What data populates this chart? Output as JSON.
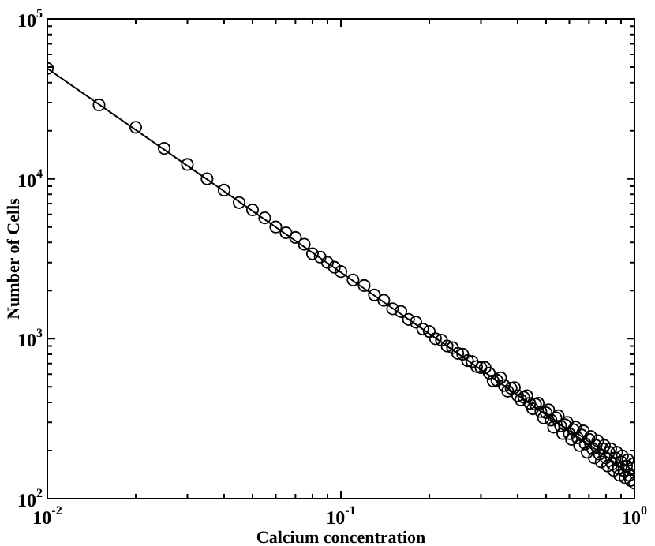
{
  "chart_data": {
    "type": "scatter",
    "xlabel": "Calcium concentration",
    "ylabel": "Number of Cells",
    "log": "xy",
    "xlim": [
      0.01,
      1
    ],
    "ylim": [
      100,
      100000
    ],
    "xticks": [
      {
        "value": 0.01,
        "label": "10$^{-2}$"
      },
      {
        "value": 0.02,
        "label": null
      },
      {
        "value": 0.03,
        "label": null
      },
      {
        "value": 0.04,
        "label": null
      },
      {
        "value": 0.05,
        "label": null
      },
      {
        "value": 0.06,
        "label": null
      },
      {
        "value": 0.07,
        "label": null
      },
      {
        "value": 0.08,
        "label": null
      },
      {
        "value": 0.09,
        "label": null
      },
      {
        "value": 0.1,
        "label": "10$^{-1}$"
      },
      {
        "value": 0.2,
        "label": null
      },
      {
        "value": 0.3,
        "label": null
      },
      {
        "value": 0.4,
        "label": null
      },
      {
        "value": 0.5,
        "label": null
      },
      {
        "value": 0.6,
        "label": null
      },
      {
        "value": 0.7,
        "label": null
      },
      {
        "value": 0.8,
        "label": null
      },
      {
        "value": 0.9,
        "label": null
      },
      {
        "value": 1,
        "label": "10$^{0}$"
      }
    ],
    "yticks": [
      {
        "value": 100,
        "label": "10$^{2}$"
      },
      {
        "value": 200,
        "label": null
      },
      {
        "value": 300,
        "label": null
      },
      {
        "value": 400,
        "label": null
      },
      {
        "value": 500,
        "label": null
      },
      {
        "value": 600,
        "label": null
      },
      {
        "value": 700,
        "label": null
      },
      {
        "value": 800,
        "label": null
      },
      {
        "value": 900,
        "label": null
      },
      {
        "value": 1000,
        "label": "10$^{3}$"
      },
      {
        "value": 2000,
        "label": null
      },
      {
        "value": 3000,
        "label": null
      },
      {
        "value": 4000,
        "label": null
      },
      {
        "value": 5000,
        "label": null
      },
      {
        "value": 6000,
        "label": null
      },
      {
        "value": 7000,
        "label": null
      },
      {
        "value": 8000,
        "label": null
      },
      {
        "value": 9000,
        "label": null
      },
      {
        "value": 10000,
        "label": "10$^{4}$"
      },
      {
        "value": 20000,
        "label": null
      },
      {
        "value": 30000,
        "label": null
      },
      {
        "value": 40000,
        "label": null
      },
      {
        "value": 50000,
        "label": null
      },
      {
        "value": 60000,
        "label": null
      },
      {
        "value": 70000,
        "label": null
      },
      {
        "value": 80000,
        "label": null
      },
      {
        "value": 90000,
        "label": null
      },
      {
        "value": 100000,
        "label": "10$^{5}$"
      }
    ],
    "series": [
      {
        "color": "#000000",
        "marker": "circle",
        "x": [
          0.01,
          0.015,
          0.02,
          0.025,
          0.03,
          0.035,
          0.04,
          0.045,
          0.05,
          0.055,
          0.06,
          0.065,
          0.07,
          0.075,
          0.08,
          0.085,
          0.09,
          0.095,
          0.1,
          0.11,
          0.12,
          0.13,
          0.14,
          0.15,
          0.16,
          0.17,
          0.18,
          0.19,
          0.2,
          0.21,
          0.22,
          0.23,
          0.24,
          0.25,
          0.26,
          0.27,
          0.28,
          0.29,
          0.3,
          0.31,
          0.32,
          0.33,
          0.34,
          0.35,
          0.36,
          0.37,
          0.38,
          0.39,
          0.4,
          0.41,
          0.42,
          0.43,
          0.44,
          0.45,
          0.46,
          0.47,
          0.48,
          0.49,
          0.5,
          0.51,
          0.52,
          0.53,
          0.54,
          0.55,
          0.56,
          0.57,
          0.58,
          0.59,
          0.6,
          0.61,
          0.62,
          0.63,
          0.64,
          0.65,
          0.66,
          0.67,
          0.68,
          0.69,
          0.7,
          0.71,
          0.72,
          0.73,
          0.74,
          0.75,
          0.76,
          0.77,
          0.78,
          0.79,
          0.8,
          0.81,
          0.82,
          0.83,
          0.84,
          0.85,
          0.86,
          0.87,
          0.88,
          0.89,
          0.9,
          0.91,
          0.92,
          0.93,
          0.94,
          0.95,
          0.96,
          0.97,
          0.98,
          0.99,
          1
        ],
        "values": [
          49000,
          29000,
          21000,
          15500,
          12300,
          10000,
          8500,
          7100,
          6400,
          5700,
          5000,
          4600,
          4300,
          3900,
          3400,
          3240,
          3000,
          2800,
          2630,
          2330,
          2150,
          1880,
          1740,
          1540,
          1480,
          1320,
          1270,
          1150,
          1110,
          1000,
          980,
          900,
          880,
          810,
          800,
          730,
          720,
          670,
          660,
          660,
          610,
          545,
          550,
          570,
          510,
          470,
          490,
          495,
          440,
          415,
          430,
          440,
          395,
          365,
          390,
          395,
          350,
          320,
          345,
          360,
          310,
          280,
          320,
          330,
          285,
          255,
          290,
          300,
          255,
          235,
          270,
          280,
          240,
          215,
          250,
          265,
          220,
          195,
          235,
          245,
          205,
          180,
          215,
          230,
          190,
          170,
          205,
          215,
          180,
          160,
          195,
          205,
          165,
          150,
          180,
          195,
          155,
          140,
          170,
          185,
          150,
          135,
          160,
          175,
          140,
          130,
          155,
          165,
          125
        ]
      },
      {
        "type": "line",
        "color": "#000000",
        "marker": "none",
        "x": [
          0.01,
          1
        ],
        "values": [
          49000,
          138
        ]
      }
    ]
  }
}
